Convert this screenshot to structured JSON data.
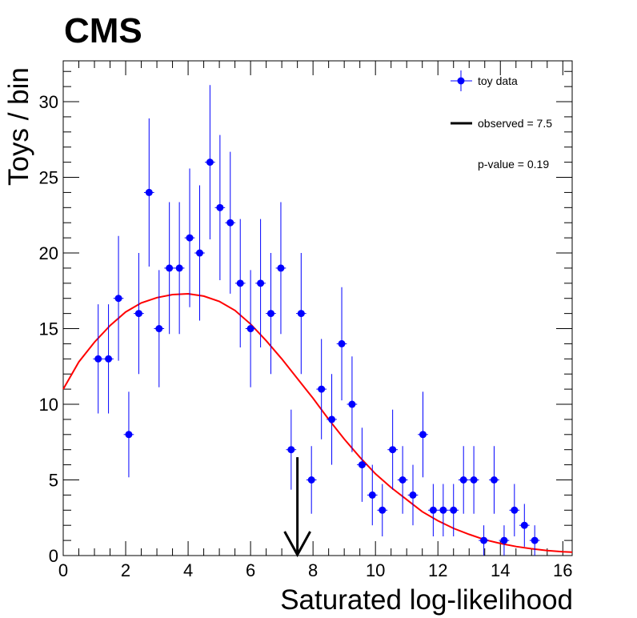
{
  "header": {
    "experiment": "CMS"
  },
  "legend": {
    "entries": [
      {
        "label": "toy data",
        "marker": "blue-point-errorbar"
      },
      {
        "label": "observed = 7.5",
        "marker": "black-line"
      }
    ],
    "pvalue": "p-value = 0.19",
    "placement": "top-right"
  },
  "chart_data": {
    "type": "scatter",
    "xlabel": "Saturated log-likelihood",
    "ylabel": "Toys / bin",
    "xlim": [
      0,
      16.3
    ],
    "ylim": [
      0,
      32.7
    ],
    "xticks": [
      0,
      2,
      4,
      6,
      8,
      10,
      12,
      14,
      16
    ],
    "yticks": [
      0,
      5,
      10,
      15,
      20,
      25,
      30
    ],
    "grid": false,
    "series": [
      {
        "name": "toy data",
        "color": "#0000ff",
        "x": [
          1.12,
          1.45,
          1.77,
          2.1,
          2.42,
          2.75,
          3.07,
          3.4,
          3.72,
          4.05,
          4.37,
          4.7,
          5.02,
          5.35,
          5.67,
          6.0,
          6.32,
          6.65,
          6.97,
          7.3,
          7.62,
          7.95,
          8.27,
          8.6,
          8.92,
          9.25,
          9.57,
          9.9,
          10.22,
          10.55,
          10.87,
          11.2,
          11.52,
          11.85,
          12.17,
          12.5,
          12.82,
          13.15,
          13.47,
          13.8,
          14.12,
          14.45,
          14.77,
          15.1
        ],
        "y": [
          13,
          13,
          17,
          8,
          16,
          24,
          15,
          19,
          19,
          21,
          20,
          26,
          23,
          22,
          18,
          15,
          18,
          16,
          19,
          7,
          16,
          5,
          11,
          9,
          14,
          10,
          6,
          4,
          3,
          7,
          5,
          4,
          8,
          3,
          3,
          3,
          5,
          5,
          1,
          5,
          1,
          3,
          2,
          1
        ]
      },
      {
        "name": "fit",
        "color": "#ff0000",
        "curve": [
          [
            0,
            11.0
          ],
          [
            0.5,
            12.8
          ],
          [
            1,
            14.1
          ],
          [
            1.5,
            15.2
          ],
          [
            2,
            16.1
          ],
          [
            2.5,
            16.7
          ],
          [
            3,
            17.05
          ],
          [
            3.5,
            17.25
          ],
          [
            4,
            17.3
          ],
          [
            4.5,
            17.15
          ],
          [
            5,
            16.8
          ],
          [
            5.5,
            16.2
          ],
          [
            6,
            15.3
          ],
          [
            6.5,
            14.2
          ],
          [
            7,
            13.0
          ],
          [
            7.5,
            11.7
          ],
          [
            8,
            10.4
          ],
          [
            8.5,
            9.0
          ],
          [
            9,
            7.7
          ],
          [
            9.5,
            6.5
          ],
          [
            10,
            5.4
          ],
          [
            10.5,
            4.5
          ],
          [
            11,
            3.7
          ],
          [
            11.5,
            2.9
          ],
          [
            12,
            2.3
          ],
          [
            12.5,
            1.8
          ],
          [
            13,
            1.4
          ],
          [
            13.5,
            1.05
          ],
          [
            14,
            0.8
          ],
          [
            14.5,
            0.6
          ],
          [
            15,
            0.45
          ],
          [
            15.5,
            0.33
          ],
          [
            16,
            0.25
          ],
          [
            16.3,
            0.22
          ]
        ]
      }
    ],
    "observed": {
      "x": 7.5,
      "arrow_top": 6.5,
      "color": "#000000"
    }
  }
}
